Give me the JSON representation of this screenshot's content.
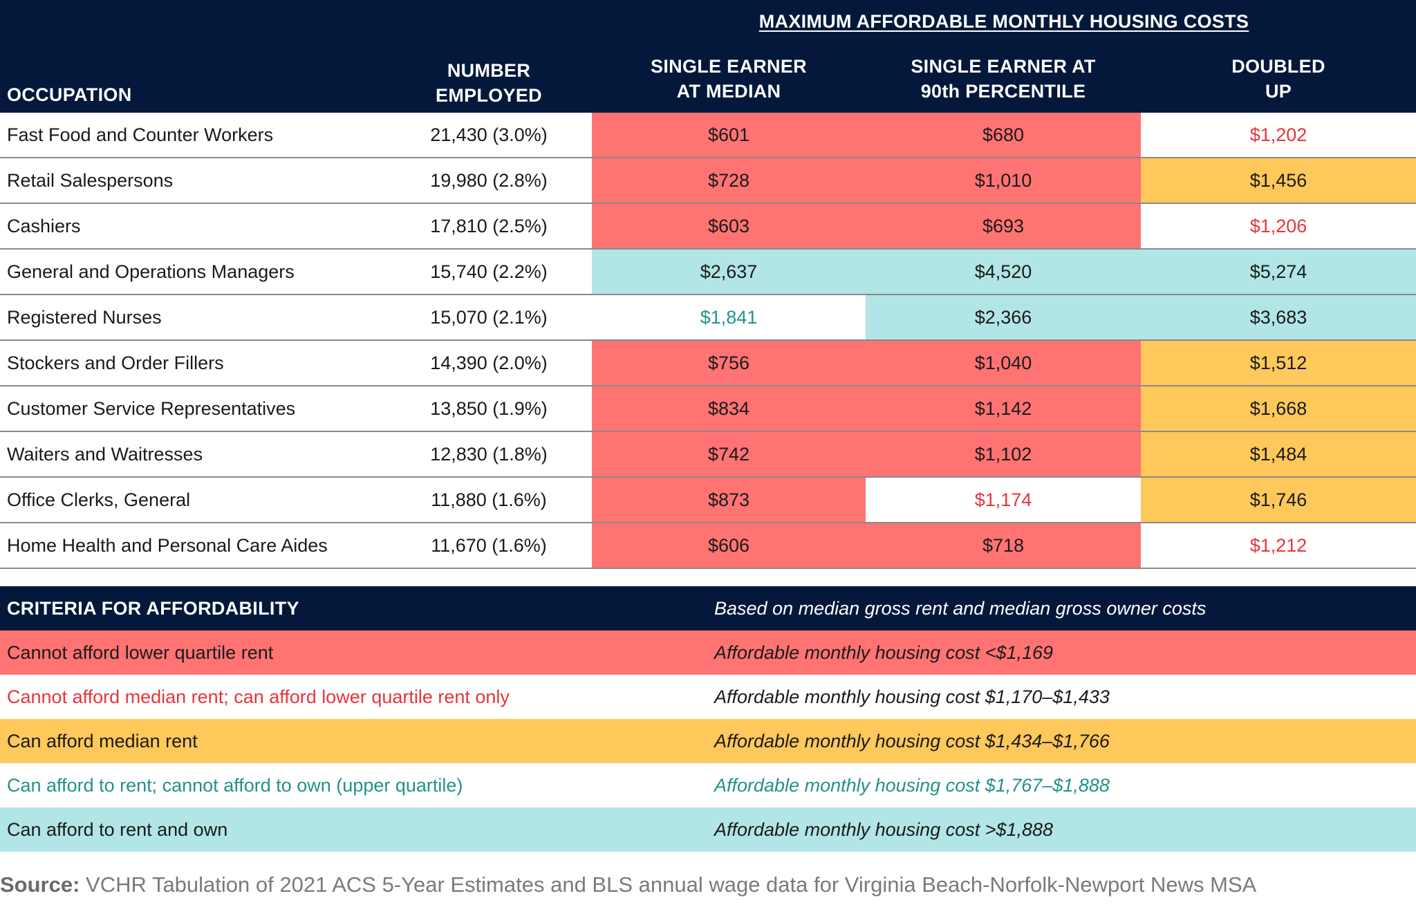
{
  "title": "MAXIMUM AFFORDABLE MONTHLY HOUSING COSTS",
  "columns": {
    "occupation": "OCCUPATION",
    "employed_l1": "NUMBER",
    "employed_l2": "EMPLOYED",
    "median_l1": "SINGLE EARNER",
    "median_l2": "AT MEDIAN",
    "p90_l1": "SINGLE EARNER AT",
    "p90_l2": "90th PERCENTILE",
    "doubled_l1": "DOUBLED",
    "doubled_l2": "UP"
  },
  "rows": [
    {
      "occupation": "Fast Food and Counter Workers",
      "employed": "21,430 (3.0%)",
      "median": "$601",
      "p90": "$680",
      "doubled": "$1,202"
    },
    {
      "occupation": "Retail Salespersons",
      "employed": "19,980 (2.8%)",
      "median": "$728",
      "p90": "$1,010",
      "doubled": "$1,456"
    },
    {
      "occupation": "Cashiers",
      "employed": "17,810 (2.5%)",
      "median": "$603",
      "p90": "$693",
      "doubled": "$1,206"
    },
    {
      "occupation": "General and Operations Managers",
      "employed": "15,740 (2.2%)",
      "median": "$2,637",
      "p90": "$4,520",
      "doubled": "$5,274"
    },
    {
      "occupation": "Registered Nurses",
      "employed": "15,070 (2.1%)",
      "median": "$1,841",
      "p90": "$2,366",
      "doubled": "$3,683"
    },
    {
      "occupation": "Stockers and Order Fillers",
      "employed": "14,390 (2.0%)",
      "median": "$756",
      "p90": "$1,040",
      "doubled": "$1,512"
    },
    {
      "occupation": "Customer Service Representatives",
      "employed": "13,850 (1.9%)",
      "median": "$834",
      "p90": "$1,142",
      "doubled": "$1,668"
    },
    {
      "occupation": "Waiters and Waitresses",
      "employed": "12,830 (1.8%)",
      "median": "$742",
      "p90": "$1,102",
      "doubled": "$1,484"
    },
    {
      "occupation": "Office Clerks, General",
      "employed": "11,880 (1.6%)",
      "median": "$873",
      "p90": "$1,174",
      "doubled": "$1,746"
    },
    {
      "occupation": "Home Health and Personal Care Aides",
      "employed": "11,670 (1.6%)",
      "median": "$606",
      "p90": "$718",
      "doubled": "$1,212"
    }
  ],
  "criteria": {
    "title": "CRITERIA FOR AFFORDABILITY",
    "note": "Based on median gross rent and median gross owner costs",
    "items": [
      {
        "label": "Cannot afford lower quartile rent",
        "range": "Affordable monthly housing cost <$1,169",
        "color": "#ff7373"
      },
      {
        "label": "Cannot afford median rent; can afford lower quartile rent only",
        "range": "Affordable monthly housing cost $1,170–$1,433",
        "color": "#e8343b"
      },
      {
        "label": "Can afford median rent",
        "range": "Affordable monthly housing cost $1,434–$1,766",
        "color": "#fec85a"
      },
      {
        "label": "Can afford to rent; cannot afford to own (upper quartile)",
        "range": "Affordable monthly housing cost $1,767–$1,888",
        "color": "#23918b"
      },
      {
        "label": "Can afford to rent and own",
        "range": "Affordable monthly housing cost >$1,888",
        "color": "#b2e5e5"
      }
    ]
  },
  "source": {
    "label": "Source:",
    "text": "VCHR Tabulation of 2021 ACS 5-Year Estimates and BLS annual wage data for Virginia Beach-Norfolk-Newport News MSA"
  }
}
